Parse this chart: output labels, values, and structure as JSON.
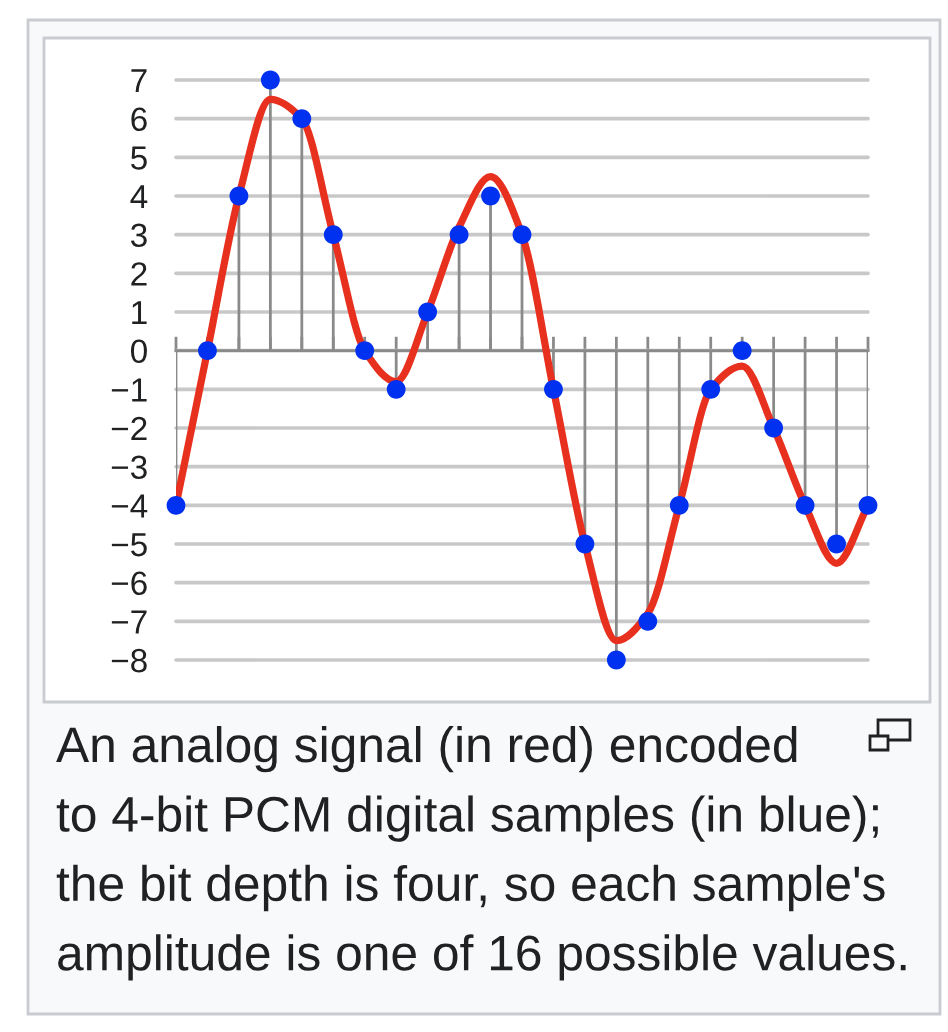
{
  "chart_data": {
    "type": "lollipop",
    "categories": [
      null,
      null,
      null,
      null,
      null,
      null,
      null,
      null,
      null,
      null,
      null,
      null,
      null,
      null,
      null,
      null,
      null,
      null,
      null,
      null,
      null,
      null,
      null
    ],
    "ylim": [
      -8,
      7
    ],
    "yticks": [
      {
        "value": -8,
        "label": "−8"
      },
      {
        "value": -7,
        "label": "−7"
      },
      {
        "value": -6,
        "label": "−6"
      },
      {
        "value": -5,
        "label": "−5"
      },
      {
        "value": -4,
        "label": "−4"
      },
      {
        "value": -3,
        "label": "−3"
      },
      {
        "value": -2,
        "label": "−2"
      },
      {
        "value": -1,
        "label": "−1"
      },
      0,
      1,
      2,
      3,
      4,
      5,
      6,
      7
    ],
    "grid": "y",
    "tick_labels": "y",
    "series": [
      {
        "type": "line",
        "color": "#e8301f",
        "line_style": "solid",
        "marker": "none",
        "values": [
          -4.0,
          0.0,
          4.0,
          6.5,
          6.0,
          3.0,
          0.0,
          -0.8,
          1.0,
          3.2,
          4.5,
          3.0,
          -1.0,
          -5.0,
          -7.5,
          -6.8,
          -4.0,
          -1.0,
          -0.4,
          -2.0,
          -4.0,
          -5.5,
          -4.0
        ]
      },
      {
        "color": "#0030f0",
        "marker": "circle",
        "values": [
          -4,
          0,
          4,
          7,
          6,
          3,
          0,
          -1,
          1,
          3,
          4,
          3,
          -1,
          -5,
          -8,
          -7,
          -4,
          -1,
          0,
          -2,
          -4,
          -5,
          -4
        ]
      }
    ],
    "annotations": [
      "An analog signal (in red) encoded\nto 4-bit PCM digital samples (in blue);\nthe bit depth is four, so each sample's\namplitude is one of 16 possible values."
    ]
  }
}
